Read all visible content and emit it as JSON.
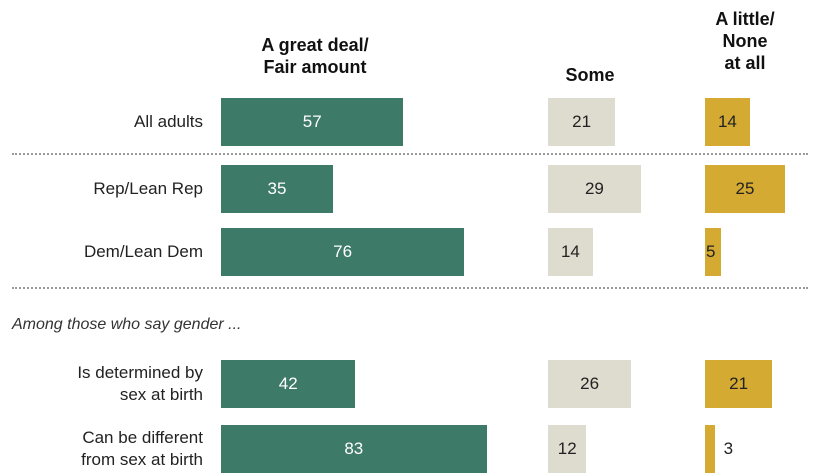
{
  "chart_data": {
    "type": "bar",
    "headers": [
      "A great deal/ Fair amount",
      "Some",
      "A little/ None at all"
    ],
    "header_lines": [
      [
        "A great deal/",
        "Fair amount"
      ],
      [
        "Some"
      ],
      [
        "A little/",
        "None",
        "at all"
      ]
    ],
    "note": "Among those who say gender ...",
    "colors": [
      "#3d7a68",
      "#dedbcf",
      "#d4aa32"
    ],
    "rows": [
      {
        "label_lines": [
          "All adults"
        ],
        "values": [
          57,
          21,
          14
        ]
      },
      {
        "label_lines": [
          "Rep/Lean Rep"
        ],
        "values": [
          35,
          29,
          25
        ]
      },
      {
        "label_lines": [
          "Dem/Lean Dem"
        ],
        "values": [
          76,
          14,
          5
        ]
      },
      {
        "label_lines": [
          "Is determined by",
          "sex at birth"
        ],
        "values": [
          42,
          26,
          21
        ]
      },
      {
        "label_lines": [
          "Can be different",
          "from sex at birth"
        ],
        "values": [
          83,
          12,
          3
        ]
      }
    ]
  }
}
